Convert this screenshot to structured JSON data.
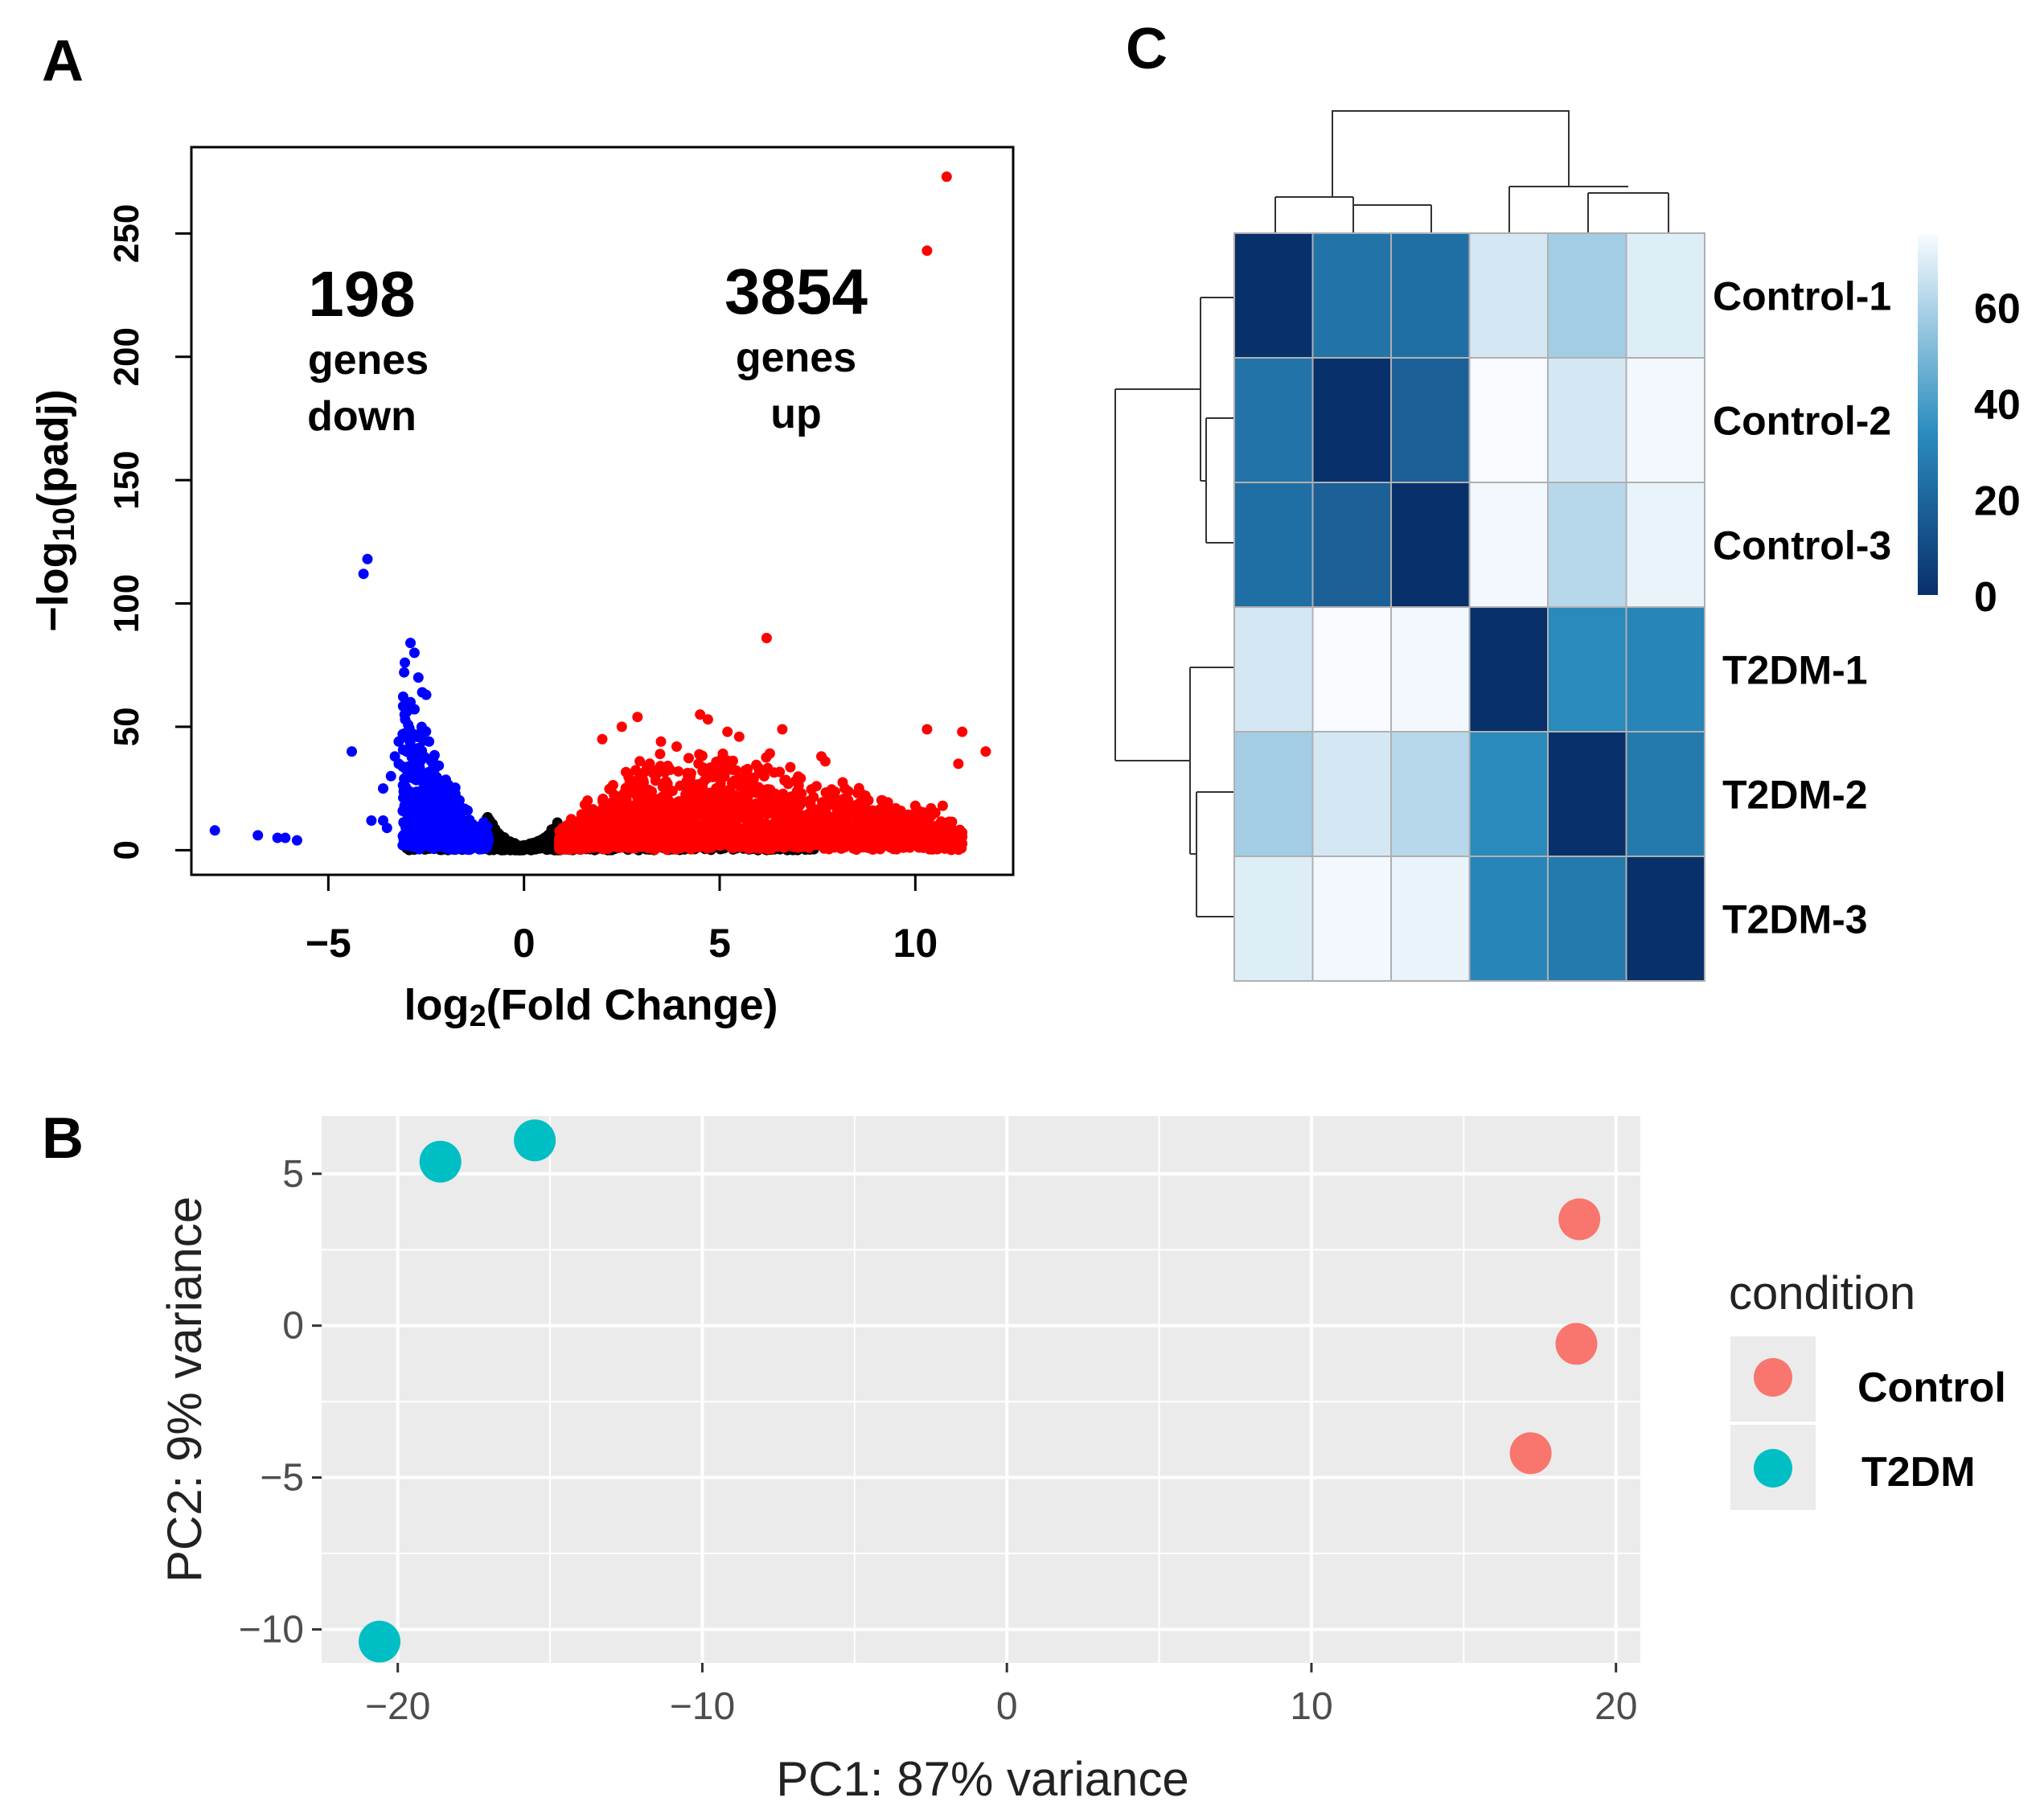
{
  "panels": {
    "a": "A",
    "b": "B",
    "c": "C"
  },
  "colors": {
    "down": "#0000ff",
    "up": "#ff0000",
    "ns": "#000000",
    "control": "#f8766d",
    "t2dm": "#00bfc4",
    "ggplot_panel": "#ebebeb",
    "grid": "#ffffff",
    "heat_low": "#08306b",
    "heat_mid": "#2b8cbe",
    "heat_high": "#f7fbff"
  },
  "chart_data": [
    {
      "type": "scatter",
      "name": "volcano",
      "xlabel": "log2(Fold Change)",
      "xlabel_prefix": "log",
      "xlabel_sub": "2",
      "xlabel_suffix": "(Fold Change)",
      "ylabel": "-log10(padj)",
      "ylabel_prefix": "−log",
      "ylabel_sub": "10",
      "ylabel_suffix": "(padj)",
      "xlim": [
        -8.5,
        12.5
      ],
      "ylim": [
        -10,
        285
      ],
      "xticks": [
        "−5",
        "0",
        "5",
        "10"
      ],
      "xtick_values": [
        -5,
        0,
        5,
        10
      ],
      "yticks": [
        "0",
        "50",
        "100",
        "150",
        "200",
        "250"
      ],
      "ytick_values": [
        0,
        50,
        100,
        150,
        200,
        250
      ],
      "annotations": {
        "down_count": "198",
        "down_word1": "genes",
        "down_word2": "down",
        "up_count": "3854",
        "up_word1": "genes",
        "up_word2": "up"
      },
      "down_outliers": [
        [
          -7.9,
          8
        ],
        [
          -6.8,
          6
        ],
        [
          -6.3,
          5
        ],
        [
          -6.1,
          5
        ],
        [
          -5.8,
          4
        ],
        [
          -4.4,
          40
        ],
        [
          -4.0,
          118
        ],
        [
          -4.1,
          112
        ],
        [
          -3.9,
          12
        ],
        [
          -3.6,
          12
        ],
        [
          -3.5,
          9
        ],
        [
          -3.4,
          30
        ],
        [
          -3.3,
          38
        ],
        [
          -3.6,
          25
        ],
        [
          -3.2,
          35
        ],
        [
          -2.9,
          84
        ],
        [
          -2.8,
          80
        ],
        [
          -2.7,
          70
        ],
        [
          -2.9,
          60
        ],
        [
          -3.0,
          56
        ],
        [
          -2.6,
          64
        ],
        [
          -2.5,
          63
        ],
        [
          -3.1,
          47
        ],
        [
          -3.2,
          44
        ],
        [
          -3.0,
          40
        ],
        [
          -3.1,
          2
        ],
        [
          -3.0,
          5
        ]
      ],
      "up_outliers": [
        [
          10.8,
          273
        ],
        [
          10.3,
          243
        ],
        [
          6.2,
          86
        ],
        [
          10.3,
          49
        ],
        [
          11.2,
          48
        ],
        [
          11.8,
          40
        ],
        [
          11.1,
          35
        ],
        [
          6.6,
          49
        ],
        [
          4.5,
          55
        ],
        [
          4.7,
          53
        ],
        [
          2.9,
          54
        ],
        [
          2.5,
          50
        ],
        [
          2.0,
          45
        ],
        [
          5.2,
          48
        ],
        [
          5.5,
          46
        ],
        [
          3.9,
          42
        ],
        [
          3.5,
          44
        ],
        [
          7.6,
          38
        ],
        [
          7.7,
          36
        ],
        [
          8.2,
          25
        ],
        [
          9.5,
          17
        ],
        [
          10.0,
          18
        ],
        [
          10.4,
          17
        ],
        [
          10.7,
          18
        ]
      ]
    },
    {
      "type": "scatter",
      "name": "pca",
      "xlabel": "PC1: 87% variance",
      "ylabel": "PC2: 9% variance",
      "xlim": [
        -22.5,
        20.8
      ],
      "ylim": [
        -11.1,
        6.9
      ],
      "xticks": [
        "−20",
        "−10",
        "0",
        "10",
        "20"
      ],
      "xtick_values": [
        -20,
        -10,
        0,
        10,
        20
      ],
      "yticks": [
        "5",
        "0",
        "−5",
        "−10"
      ],
      "ytick_values": [
        5,
        0,
        -5,
        -10
      ],
      "legend_title": "condition",
      "legend_position": "right",
      "series": [
        {
          "name": "Control",
          "points": [
            [
              18.8,
              3.5
            ],
            [
              18.7,
              -0.6
            ],
            [
              17.2,
              -4.2
            ]
          ]
        },
        {
          "name": "T2DM",
          "points": [
            [
              -18.6,
              5.4
            ],
            [
              -15.5,
              6.1
            ],
            [
              -20.6,
              -10.4
            ]
          ]
        }
      ]
    },
    {
      "type": "heatmap",
      "name": "sample-distance",
      "row_labels": [
        "Control-1",
        "Control-2",
        "Control-3",
        "T2DM-1",
        "T2DM-2",
        "T2DM-3"
      ],
      "col_labels": [],
      "values": [
        [
          0,
          25,
          23,
          68,
          58,
          70
        ],
        [
          25,
          0,
          18,
          76,
          68,
          74
        ],
        [
          23,
          18,
          0,
          74,
          62,
          72
        ],
        [
          68,
          76,
          74,
          0,
          33,
          31
        ],
        [
          58,
          68,
          62,
          33,
          0,
          27
        ],
        [
          70,
          74,
          72,
          31,
          27,
          0
        ]
      ],
      "color_range": [
        0,
        75
      ],
      "colorbar_ticks": [
        "0",
        "20",
        "40",
        "60"
      ],
      "colorbar_tick_values": [
        0,
        20,
        40,
        60
      ]
    }
  ]
}
